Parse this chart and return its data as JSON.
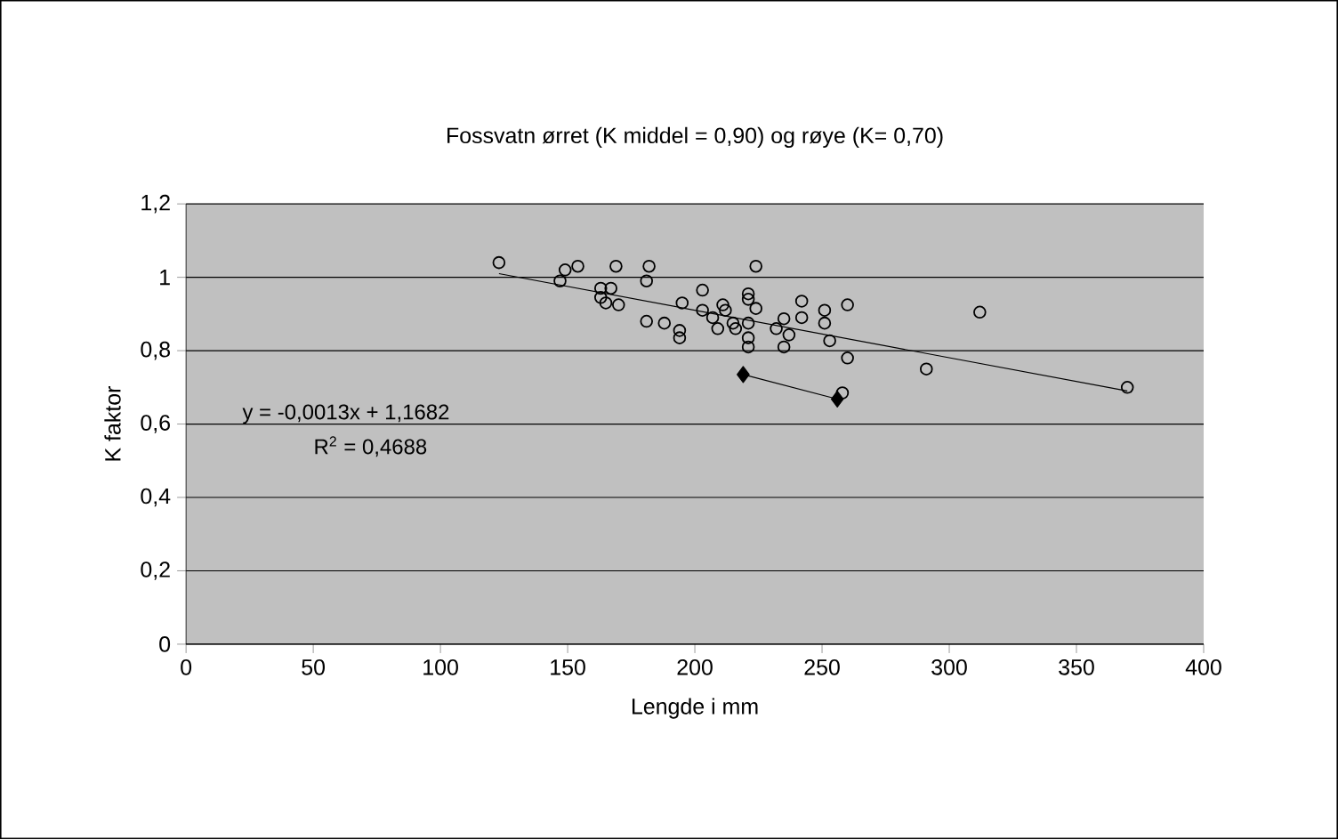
{
  "chart_data": {
    "type": "scatter",
    "title": "Fossvatn ørret (K middel = 0,90) og røye (K= 0,70)",
    "xlabel": "Lengde i mm",
    "ylabel": "K faktor",
    "xlim": [
      0,
      400
    ],
    "xticks": [
      0,
      50,
      100,
      150,
      200,
      250,
      300,
      350,
      400
    ],
    "ylim": [
      0,
      1.2
    ],
    "yticks": [
      {
        "value": 0,
        "label": "0"
      },
      {
        "value": 0.2,
        "label": "0,2"
      },
      {
        "value": 0.4,
        "label": "0,4"
      },
      {
        "value": 0.6,
        "label": "0,6"
      },
      {
        "value": 0.8,
        "label": "0,8"
      },
      {
        "value": 1,
        "label": "1"
      },
      {
        "value": 1.2,
        "label": "1,2"
      }
    ],
    "grid": "y",
    "annotations": [
      "y = -0,0013x + 1,1682",
      "R$^{2}$ = 0,4688"
    ],
    "series": [
      {
        "marker": "circle",
        "color": "#000000",
        "x": [
          123,
          147,
          149,
          154,
          163,
          167,
          163,
          165,
          170,
          169,
          182,
          181,
          181,
          188,
          194,
          194,
          195,
          203,
          203,
          207,
          211,
          212,
          209,
          215,
          216,
          221,
          221,
          224,
          224,
          221,
          221,
          221,
          232,
          235,
          237,
          235,
          242,
          242,
          251,
          251,
          253,
          260,
          260,
          258,
          291,
          312,
          370
        ],
        "values": [
          1.04,
          0.99,
          1.02,
          1.03,
          0.97,
          0.97,
          0.945,
          0.93,
          0.925,
          1.03,
          1.03,
          0.99,
          0.88,
          0.875,
          0.855,
          0.835,
          0.93,
          0.965,
          0.91,
          0.89,
          0.925,
          0.91,
          0.86,
          0.875,
          0.86,
          0.955,
          0.94,
          1.03,
          0.915,
          0.875,
          0.835,
          0.81,
          0.86,
          0.887,
          0.843,
          0.81,
          0.935,
          0.89,
          0.91,
          0.875,
          0.827,
          0.925,
          0.78,
          0.685,
          0.75,
          0.905,
          0.7
        ]
      },
      {
        "type": "line",
        "marker": "diamond",
        "line_style": "solid",
        "color": "#000000",
        "x": [
          219,
          256
        ],
        "values": [
          0.735,
          0.668
        ]
      },
      {
        "type": "line",
        "marker": "none",
        "line_style": "solid",
        "color": "#000000",
        "x": [
          123,
          370
        ],
        "values": [
          1.01,
          0.69
        ]
      }
    ]
  }
}
